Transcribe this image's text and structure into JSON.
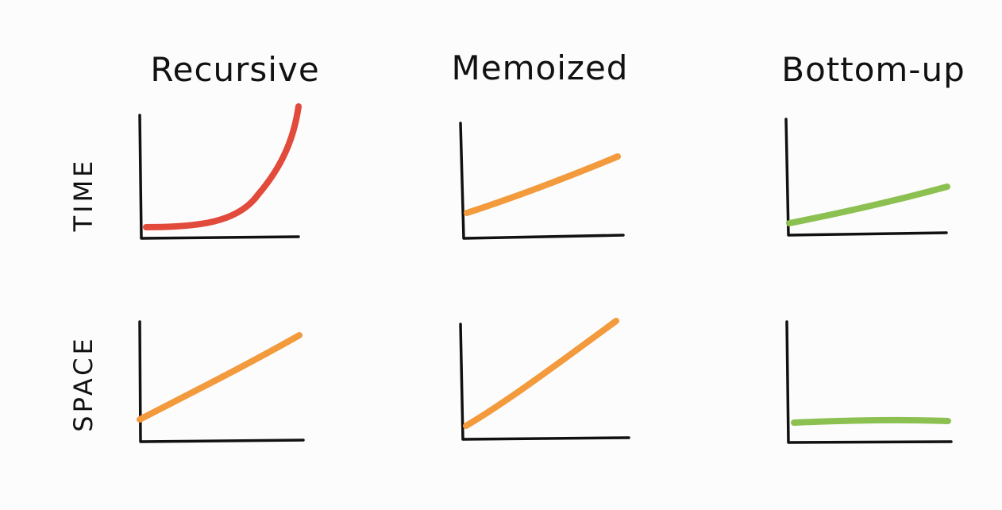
{
  "columns": [
    {
      "key": "recursive",
      "title": "Recursive"
    },
    {
      "key": "memoized",
      "title": "Memoized"
    },
    {
      "key": "bottom_up",
      "title": "Bottom-up"
    }
  ],
  "rows": [
    {
      "key": "time",
      "label": "TIME"
    },
    {
      "key": "space",
      "label": "SPACE"
    }
  ],
  "colors": {
    "red": "#e24a3b",
    "orange": "#f29a3c",
    "green": "#8cc152",
    "ink": "#111111"
  },
  "panels": [
    {
      "row": "time",
      "column": "recursive",
      "growth": "exponential",
      "color": "red"
    },
    {
      "row": "time",
      "column": "memoized",
      "growth": "linear",
      "color": "orange"
    },
    {
      "row": "time",
      "column": "bottom_up",
      "growth": "linear",
      "color": "green"
    },
    {
      "row": "space",
      "column": "recursive",
      "growth": "linear",
      "color": "orange"
    },
    {
      "row": "space",
      "column": "memoized",
      "growth": "linear",
      "color": "orange"
    },
    {
      "row": "space",
      "column": "bottom_up",
      "growth": "constant",
      "color": "green"
    }
  ]
}
